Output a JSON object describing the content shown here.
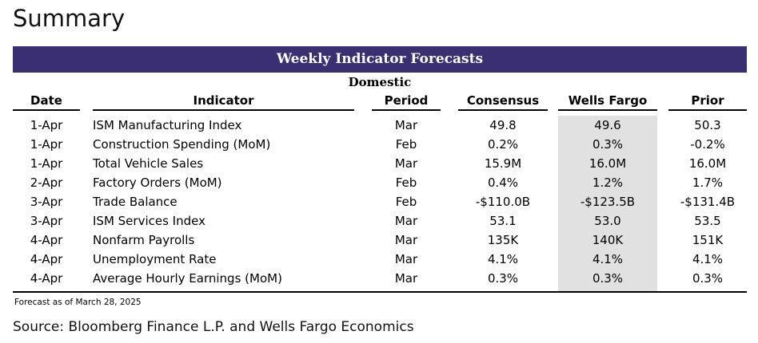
{
  "page": {
    "title": "Summary"
  },
  "table": {
    "title": "Weekly Indicator Forecasts",
    "section": "Domestic",
    "columns": {
      "date": "Date",
      "indicator": "Indicator",
      "period": "Period",
      "consensus": "Consensus",
      "wells_fargo": "Wells Fargo",
      "prior": "Prior"
    },
    "rows": [
      {
        "date": "1-Apr",
        "indicator": "ISM Manufacturing Index",
        "period": "Mar",
        "consensus": "49.8",
        "wells_fargo": "49.6",
        "prior": "50.3"
      },
      {
        "date": "1-Apr",
        "indicator": "Construction Spending (MoM)",
        "period": "Feb",
        "consensus": "0.2%",
        "wells_fargo": "0.3%",
        "prior": "-0.2%"
      },
      {
        "date": "1-Apr",
        "indicator": "Total Vehicle Sales",
        "period": "Mar",
        "consensus": "15.9M",
        "wells_fargo": "16.0M",
        "prior": "16.0M"
      },
      {
        "date": "2-Apr",
        "indicator": "Factory Orders (MoM)",
        "period": "Feb",
        "consensus": "0.4%",
        "wells_fargo": "1.2%",
        "prior": "1.7%"
      },
      {
        "date": "3-Apr",
        "indicator": "Trade Balance",
        "period": "Feb",
        "consensus": "-$110.0B",
        "wells_fargo": "-$123.5B",
        "prior": "-$131.4B"
      },
      {
        "date": "3-Apr",
        "indicator": "ISM Services Index",
        "period": "Mar",
        "consensus": "53.1",
        "wells_fargo": "53.0",
        "prior": "53.5"
      },
      {
        "date": "4-Apr",
        "indicator": "Nonfarm Payrolls",
        "period": "Mar",
        "consensus": "135K",
        "wells_fargo": "140K",
        "prior": "151K"
      },
      {
        "date": "4-Apr",
        "indicator": "Unemployment Rate",
        "period": "Mar",
        "consensus": "4.1%",
        "wells_fargo": "4.1%",
        "prior": "4.1%"
      },
      {
        "date": "4-Apr",
        "indicator": "Average Hourly Earnings (MoM)",
        "period": "Mar",
        "consensus": "0.3%",
        "wells_fargo": "0.3%",
        "prior": "0.3%"
      }
    ]
  },
  "footnote": "Forecast as of March 28, 2025",
  "source": "Source: Bloomberg Finance L.P. and Wells Fargo Economics",
  "colors": {
    "banner": "#3b2f73",
    "highlight_column": "#e1e1e1"
  }
}
